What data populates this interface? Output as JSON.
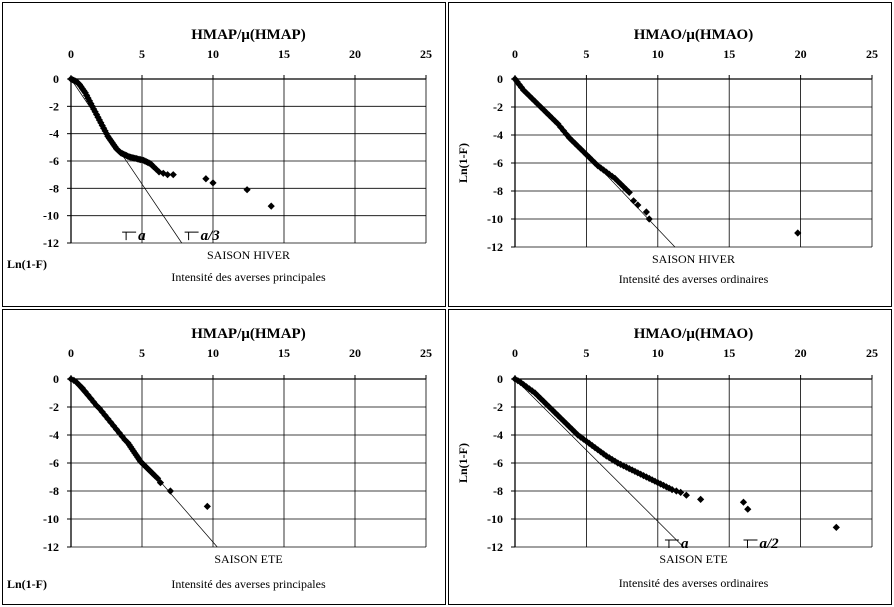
{
  "chart_data": [
    {
      "type": "scatter",
      "title": "HMAP/µ(HMAP)",
      "ylabel": "Ln(1-F)",
      "ylabel_placement": "bottom-left",
      "caption": "SAISON HIVER",
      "subcaption": "Intensité des averses principales",
      "xlim": [
        0,
        25
      ],
      "ylim": [
        -12,
        0
      ],
      "xticks": [
        0,
        5,
        10,
        15,
        20,
        25
      ],
      "yticks": [
        0,
        -2,
        -4,
        -6,
        -8,
        -10,
        -12
      ],
      "grid": true,
      "x_axis_position": "top",
      "fit_line": {
        "x": [
          0,
          7.8
        ],
        "y": [
          0,
          -12
        ]
      },
      "annotations": [
        {
          "text": "a",
          "x": 3.6,
          "y": -11.2
        },
        {
          "text": "a/3",
          "x": 8.0,
          "y": -11.2
        }
      ],
      "series": [
        {
          "x": [
            0.0,
            0.1,
            0.2,
            0.3,
            0.4,
            0.5,
            0.6,
            0.7,
            0.8,
            0.9,
            1.0,
            1.1,
            1.2,
            1.3,
            1.4,
            1.5,
            1.6,
            1.7,
            1.8,
            1.9,
            2.0,
            2.1,
            2.2,
            2.3,
            2.4,
            2.5,
            2.6,
            2.7,
            2.8,
            2.9,
            3.0,
            3.1,
            3.2,
            3.3,
            3.4,
            3.5,
            3.6,
            3.7,
            3.8,
            3.9,
            4.0,
            4.1,
            4.2,
            4.3,
            4.4,
            4.5,
            4.6,
            4.7,
            4.8,
            4.9,
            5.0,
            5.1,
            5.2,
            5.3,
            5.4,
            5.5,
            5.6,
            5.7,
            5.8,
            6.0,
            6.2,
            6.5,
            6.8,
            7.2,
            9.5,
            10.0,
            12.4,
            14.1
          ],
          "y": [
            0.0,
            -0.05,
            -0.1,
            -0.15,
            -0.2,
            -0.3,
            -0.4,
            -0.55,
            -0.7,
            -0.85,
            -1.0,
            -1.2,
            -1.4,
            -1.6,
            -1.8,
            -2.0,
            -2.2,
            -2.4,
            -2.6,
            -2.8,
            -3.0,
            -3.2,
            -3.4,
            -3.6,
            -3.8,
            -4.0,
            -4.2,
            -4.35,
            -4.5,
            -4.65,
            -4.8,
            -4.95,
            -5.1,
            -5.2,
            -5.3,
            -5.4,
            -5.45,
            -5.5,
            -5.55,
            -5.6,
            -5.65,
            -5.7,
            -5.72,
            -5.75,
            -5.78,
            -5.8,
            -5.82,
            -5.85,
            -5.88,
            -5.9,
            -5.92,
            -5.95,
            -6.0,
            -6.05,
            -6.1,
            -6.15,
            -6.2,
            -6.3,
            -6.4,
            -6.6,
            -6.8,
            -6.9,
            -7.0,
            -7.0,
            -7.3,
            -7.6,
            -8.1,
            -9.3
          ]
        }
      ]
    },
    {
      "type": "scatter",
      "title": "HMAO/µ(HMAO)",
      "ylabel": "Ln(1-F)",
      "ylabel_placement": "left",
      "caption": "SAISON HIVER",
      "subcaption": "Intensité des averses ordinaires",
      "xlim": [
        0,
        25
      ],
      "ylim": [
        -12,
        0
      ],
      "xticks": [
        0,
        5,
        10,
        15,
        20,
        25
      ],
      "yticks": [
        0,
        -2,
        -4,
        -6,
        -8,
        -10,
        -12
      ],
      "grid": true,
      "x_axis_position": "top",
      "fit_line": {
        "x": [
          0,
          11.2
        ],
        "y": [
          0,
          -12
        ]
      },
      "annotations": [],
      "series": [
        {
          "x": [
            0.0,
            0.15,
            0.3,
            0.45,
            0.6,
            0.8,
            1.0,
            1.2,
            1.4,
            1.6,
            1.8,
            2.0,
            2.2,
            2.4,
            2.6,
            2.8,
            3.0,
            3.2,
            3.4,
            3.6,
            3.8,
            4.0,
            4.2,
            4.4,
            4.6,
            4.8,
            5.0,
            5.2,
            5.4,
            5.6,
            5.8,
            6.0,
            6.2,
            6.4,
            6.6,
            6.8,
            7.0,
            7.2,
            7.4,
            7.6,
            7.8,
            8.0,
            8.3,
            8.6,
            9.2,
            9.4,
            19.8
          ],
          "y": [
            0.0,
            -0.2,
            -0.4,
            -0.6,
            -0.8,
            -1.0,
            -1.2,
            -1.4,
            -1.6,
            -1.8,
            -2.0,
            -2.2,
            -2.4,
            -2.6,
            -2.8,
            -3.0,
            -3.2,
            -3.45,
            -3.7,
            -3.95,
            -4.2,
            -4.4,
            -4.6,
            -4.8,
            -5.0,
            -5.2,
            -5.4,
            -5.6,
            -5.8,
            -6.0,
            -6.2,
            -6.35,
            -6.5,
            -6.65,
            -6.8,
            -6.95,
            -7.1,
            -7.3,
            -7.5,
            -7.7,
            -7.9,
            -8.1,
            -8.7,
            -9.0,
            -9.5,
            -10.0,
            -11.0
          ]
        }
      ]
    },
    {
      "type": "scatter",
      "title": "HMAP/µ(HMAP)",
      "ylabel": "Ln(1-F)",
      "ylabel_placement": "bottom-left",
      "caption": "SAISON ETE",
      "subcaption": "Intensité des averses principales",
      "xlim": [
        0,
        25
      ],
      "ylim": [
        -12,
        0
      ],
      "xticks": [
        0,
        5,
        10,
        15,
        20,
        25
      ],
      "yticks": [
        0,
        -2,
        -4,
        -6,
        -8,
        -10,
        -12
      ],
      "grid": true,
      "x_axis_position": "top",
      "fit_line": {
        "x": [
          0,
          10.3
        ],
        "y": [
          0,
          -12
        ]
      },
      "annotations": [],
      "series": [
        {
          "x": [
            0.0,
            0.2,
            0.4,
            0.6,
            0.8,
            1.0,
            1.2,
            1.4,
            1.6,
            1.8,
            2.0,
            2.2,
            2.4,
            2.6,
            2.8,
            3.0,
            3.2,
            3.4,
            3.6,
            3.8,
            4.0,
            4.1,
            4.2,
            4.3,
            4.4,
            4.5,
            4.6,
            4.7,
            4.8,
            4.9,
            5.0,
            5.1,
            5.2,
            5.3,
            5.4,
            5.5,
            5.6,
            5.7,
            5.8,
            5.9,
            6.1,
            6.3,
            7.0,
            9.6
          ],
          "y": [
            0.0,
            -0.1,
            -0.25,
            -0.45,
            -0.65,
            -0.9,
            -1.15,
            -1.4,
            -1.65,
            -1.9,
            -2.1,
            -2.35,
            -2.6,
            -2.85,
            -3.1,
            -3.35,
            -3.6,
            -3.85,
            -4.1,
            -4.35,
            -4.55,
            -4.7,
            -4.85,
            -5.0,
            -5.15,
            -5.3,
            -5.45,
            -5.6,
            -5.75,
            -5.9,
            -6.0,
            -6.1,
            -6.2,
            -6.3,
            -6.4,
            -6.5,
            -6.6,
            -6.7,
            -6.8,
            -6.9,
            -7.1,
            -7.4,
            -8.0,
            -9.1
          ]
        }
      ]
    },
    {
      "type": "scatter",
      "title": "HMAO/µ(HMAO)",
      "ylabel": "Ln(1-F)",
      "ylabel_placement": "left",
      "caption": "SAISON ETE",
      "subcaption": "Intensité des averses ordinaires",
      "xlim": [
        0,
        25
      ],
      "ylim": [
        -12,
        0
      ],
      "xticks": [
        0,
        5,
        10,
        15,
        20,
        25
      ],
      "yticks": [
        0,
        -2,
        -4,
        -6,
        -8,
        -10,
        -12
      ],
      "grid": true,
      "x_axis_position": "top",
      "fit_line": {
        "x": [
          0,
          11.8
        ],
        "y": [
          0,
          -12
        ]
      },
      "annotations": [
        {
          "text": "a",
          "x": 10.5,
          "y": -11.5
        },
        {
          "text": "a/2",
          "x": 16.0,
          "y": -11.5
        }
      ],
      "series": [
        {
          "x": [
            0.0,
            0.2,
            0.4,
            0.6,
            0.8,
            1.0,
            1.2,
            1.4,
            1.6,
            1.8,
            2.0,
            2.2,
            2.4,
            2.6,
            2.8,
            3.0,
            3.2,
            3.4,
            3.6,
            3.8,
            4.0,
            4.2,
            4.4,
            4.6,
            4.8,
            5.0,
            5.2,
            5.4,
            5.6,
            5.8,
            6.0,
            6.2,
            6.4,
            6.6,
            6.8,
            7.0,
            7.2,
            7.4,
            7.6,
            7.8,
            8.0,
            8.2,
            8.4,
            8.6,
            8.8,
            9.0,
            9.2,
            9.4,
            9.6,
            9.8,
            10.0,
            10.2,
            10.4,
            10.6,
            10.8,
            11.0,
            11.3,
            11.6,
            12.0,
            13.0,
            16.0,
            16.3,
            22.5
          ],
          "y": [
            0.0,
            -0.12,
            -0.25,
            -0.4,
            -0.55,
            -0.7,
            -0.85,
            -1.0,
            -1.2,
            -1.4,
            -1.6,
            -1.8,
            -2.0,
            -2.2,
            -2.4,
            -2.6,
            -2.8,
            -3.0,
            -3.2,
            -3.4,
            -3.6,
            -3.8,
            -4.0,
            -4.15,
            -4.3,
            -4.45,
            -4.6,
            -4.75,
            -4.9,
            -5.05,
            -5.2,
            -5.35,
            -5.5,
            -5.62,
            -5.75,
            -5.87,
            -6.0,
            -6.1,
            -6.2,
            -6.3,
            -6.4,
            -6.5,
            -6.6,
            -6.7,
            -6.8,
            -6.9,
            -7.0,
            -7.1,
            -7.2,
            -7.3,
            -7.4,
            -7.5,
            -7.6,
            -7.7,
            -7.8,
            -7.9,
            -8.0,
            -8.1,
            -8.3,
            -8.6,
            -8.8,
            -9.3,
            -10.6
          ]
        }
      ]
    }
  ]
}
